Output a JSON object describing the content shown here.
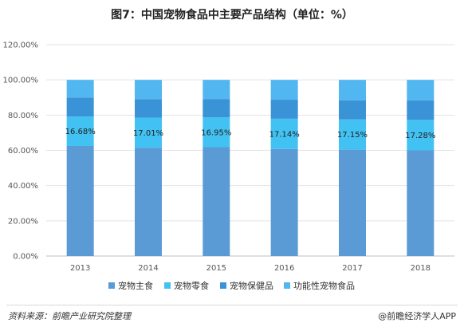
{
  "title": "图7：中国宠物食品中主要产品结构（单位：%）",
  "source": "资料来源：前瞻产业研究院整理",
  "brand": "@前瞻经济学人APP",
  "colors": {
    "main": "#5b9bd5",
    "snack": "#42c2f2",
    "health": "#3a93d6",
    "functional": "#52b6f0"
  },
  "chart_data": {
    "type": "bar",
    "stacked": true,
    "categories": [
      "2013",
      "2014",
      "2015",
      "2016",
      "2017",
      "2018"
    ],
    "yticks": [
      "0.00%",
      "20.00%",
      "40.00%",
      "60.00%",
      "80.00%",
      "100.00%",
      "120.00%"
    ],
    "ylim": [
      0,
      120
    ],
    "grid": true,
    "legend_position": "bottom",
    "series": [
      {
        "name": "宠物主食",
        "color": "#5b9bd5",
        "values": [
          62.5,
          61.5,
          61.8,
          60.8,
          60.4,
          60.0
        ]
      },
      {
        "name": "宠物零食",
        "color": "#42c2f2",
        "values": [
          16.68,
          17.01,
          16.95,
          17.14,
          17.15,
          17.28
        ],
        "labels": [
          "16.68%",
          "17.01%",
          "16.95%",
          "17.14%",
          "17.15%",
          "17.28%"
        ]
      },
      {
        "name": "宠物保健品",
        "color": "#3a93d6",
        "values": [
          10.8,
          10.6,
          10.4,
          10.8,
          10.9,
          11.0
        ]
      },
      {
        "name": "功能性宠物食品",
        "color": "#52b6f0",
        "values": [
          10.02,
          10.89,
          10.85,
          11.26,
          11.55,
          11.72
        ]
      }
    ]
  }
}
